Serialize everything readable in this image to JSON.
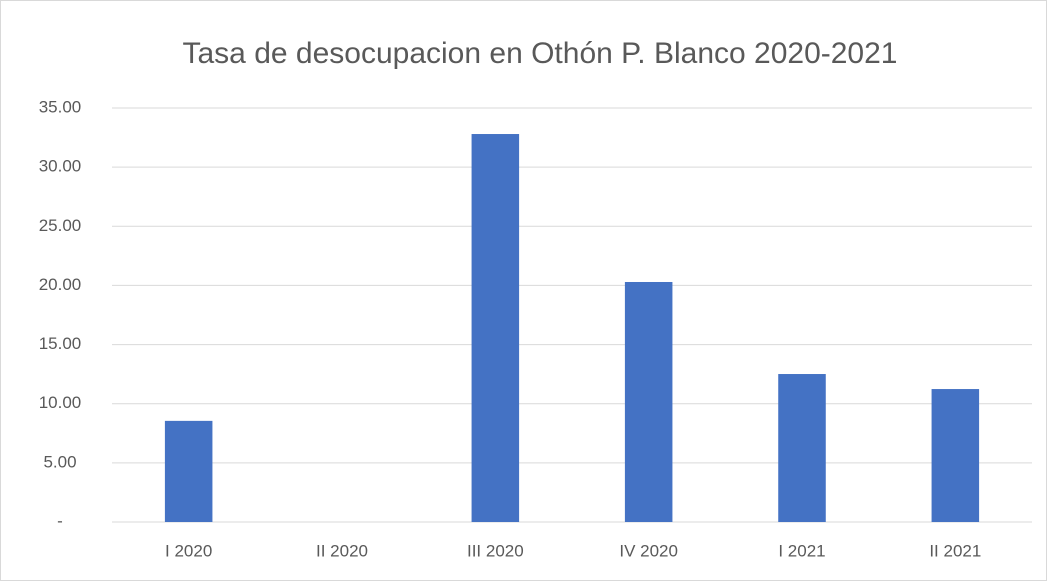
{
  "chart_data": {
    "type": "bar",
    "title": "Tasa de desocupacion en Othón P. Blanco 2020-2021",
    "categories": [
      "I 2020",
      "II 2020",
      "III 2020",
      "IV 2020",
      "I 2021",
      "II 2021"
    ],
    "values": [
      8.55,
      null,
      32.8,
      20.29,
      12.51,
      11.24
    ],
    "color": "#4472c4",
    "ylim": [
      0,
      35
    ],
    "yticks": [
      {
        "value": 0,
        "label": "-"
      },
      {
        "value": 5,
        "label": "5.00"
      },
      {
        "value": 10,
        "label": "10.00"
      },
      {
        "value": 15,
        "label": "15.00"
      },
      {
        "value": 20,
        "label": "20.00"
      },
      {
        "value": 25,
        "label": "25.00"
      },
      {
        "value": 30,
        "label": "30.00"
      },
      {
        "value": 35,
        "label": "35.00"
      }
    ],
    "grid": true
  }
}
